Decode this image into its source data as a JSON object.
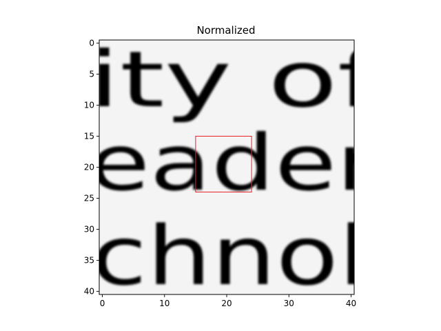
{
  "chart_data": {
    "type": "heatmap",
    "title": "Normalized",
    "xlabel": "",
    "ylabel": "",
    "xlim": [
      -0.5,
      40.5
    ],
    "ylim": [
      40.5,
      -0.5
    ],
    "x_ticks": [
      0,
      10,
      20,
      30,
      40
    ],
    "y_ticks": [
      0,
      5,
      10,
      15,
      20,
      25,
      30,
      35,
      40
    ],
    "grid": false,
    "colormap": "gray",
    "text_rows": [
      {
        "text": "ity of",
        "y_center": 8
      },
      {
        "text": "eader",
        "y_center": 21
      },
      {
        "text": "chnol",
        "y_center": 36
      }
    ],
    "highlight_box": {
      "x": [
        15,
        24
      ],
      "y": [
        15,
        24
      ],
      "color": "#e8202a"
    }
  }
}
